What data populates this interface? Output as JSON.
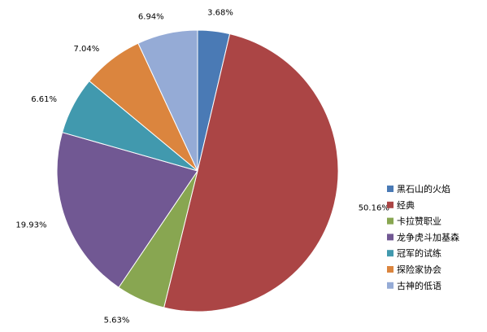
{
  "chart_data": {
    "type": "pie",
    "title": "",
    "legend_position": "right",
    "slices": [
      {
        "name": "黑石山的火焰",
        "value": 3.68,
        "label": "3.68%",
        "color": "#4a7ab5"
      },
      {
        "name": "经典",
        "value": 50.16,
        "label": "50.16%",
        "color": "#ab4545"
      },
      {
        "name": "卡拉赞职业",
        "value": 5.63,
        "label": "5.63%",
        "color": "#88a651"
      },
      {
        "name": "龙争虎斗加基森",
        "value": 19.93,
        "label": "19.93%",
        "color": "#715893"
      },
      {
        "name": "冠军的试练",
        "value": 6.61,
        "label": "6.61%",
        "color": "#4199ae"
      },
      {
        "name": "探险家协会",
        "value": 7.04,
        "label": "7.04%",
        "color": "#db853e"
      },
      {
        "name": "古神的低语",
        "value": 6.94,
        "label": "6.94%",
        "color": "#95abd6"
      }
    ]
  }
}
